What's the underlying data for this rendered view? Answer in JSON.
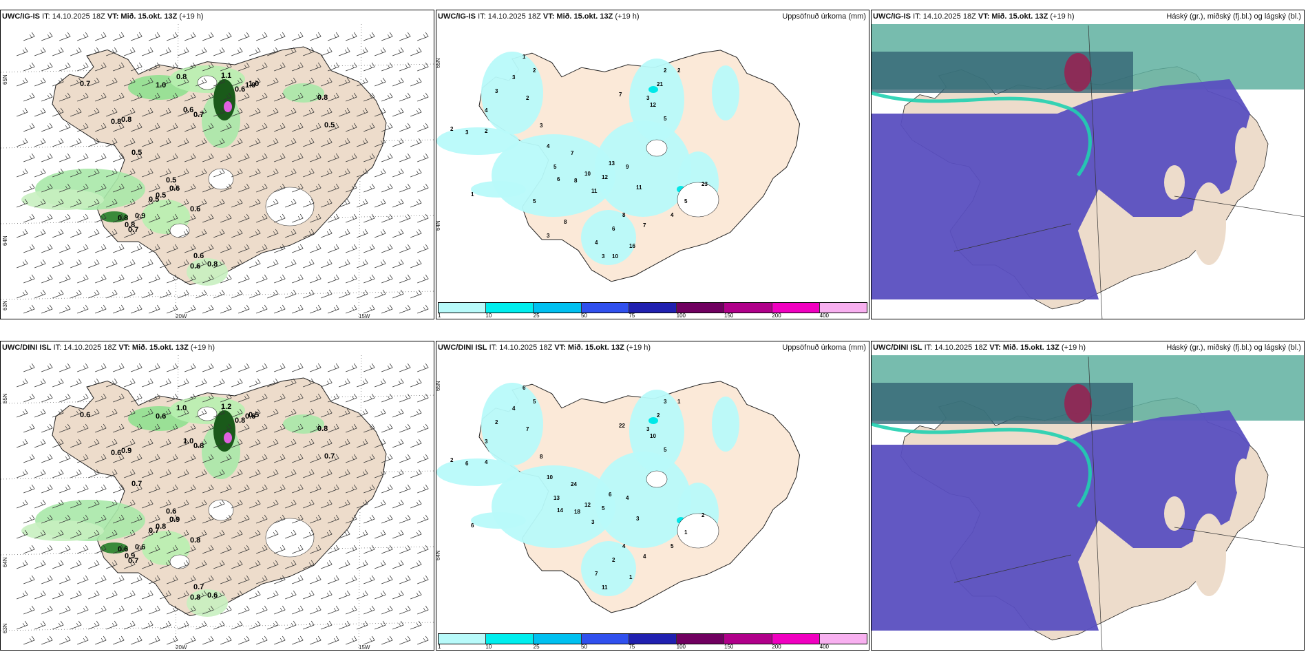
{
  "rows": [
    {
      "model": "UWC/IG-IS",
      "it": "IT: 14.10.2025 18Z",
      "vt": "VT: Mið. 15.okt. 13Z",
      "lead": "(+19 h)",
      "precip_title": "Uppsöfnuð úrkoma (mm)",
      "cloud_title": "Háský (gr.), miðský (fj.bl.) og lágský (bl.)",
      "wind_labels": [
        "0.7",
        "1.0",
        "0.8",
        "1.1",
        "0.6",
        "1.0",
        "0.6",
        "0.7",
        "0.8",
        "0.8",
        "0.5",
        "0.5",
        "0.6",
        "0.5",
        "0.5",
        "0.6",
        "0.8",
        "0.8",
        "0.9",
        "0.7",
        "0.6",
        "0.6",
        "0.8",
        "1.0",
        "0.5",
        "0.8"
      ],
      "precip_labels": [
        "2",
        "3",
        "2",
        "4",
        "3",
        "3",
        "2",
        "1",
        "2",
        "3",
        "4",
        "5",
        "6",
        "7",
        "8",
        "10",
        "11",
        "12",
        "13",
        "9",
        "21",
        "12",
        "5",
        "3",
        "2",
        "7",
        "11",
        "8",
        "6",
        "4",
        "3",
        "1",
        "23",
        "5",
        "4",
        "2",
        "7",
        "16",
        "10",
        "8",
        "3",
        "5"
      ]
    },
    {
      "model": "UWC/DINI ISL",
      "it": "IT: 14.10.2025 18Z",
      "vt": "VT: Mið. 15.okt. 13Z",
      "lead": "(+19 h)",
      "precip_title": "Uppsöfnuð úrkoma (mm)",
      "cloud_title": "Háský (gr.), miðský (fj.bl.) og lágský (bl.)",
      "wind_labels": [
        "0.6",
        "0.6",
        "1.0",
        "1.2",
        "0.8",
        "0.5",
        "1.0",
        "0.8",
        "0.6",
        "0.9",
        "0.7",
        "0.6",
        "0.9",
        "0.8",
        "0.7",
        "0.8",
        "0.6",
        "0.9",
        "0.6",
        "0.7",
        "0.7",
        "0.8",
        "0.6",
        "0.6",
        "0.7",
        "0.8"
      ],
      "precip_labels": [
        "2",
        "6",
        "4",
        "3",
        "2",
        "4",
        "5",
        "6",
        "7",
        "8",
        "10",
        "13",
        "14",
        "24",
        "18",
        "12",
        "3",
        "5",
        "6",
        "4",
        "2",
        "10",
        "5",
        "3",
        "1",
        "22",
        "3",
        "4",
        "2",
        "7",
        "11",
        "6",
        "2",
        "1",
        "5",
        "3",
        "4",
        "1"
      ]
    }
  ],
  "lat_labels": [
    "65N",
    "64N",
    "63N"
  ],
  "lon_labels": [
    "20W",
    "15W"
  ],
  "colorbar": {
    "ticks": [
      "1",
      "10",
      "25",
      "50",
      "75",
      "100",
      "150",
      "200",
      "400"
    ],
    "colors": [
      "#b8fafa",
      "#00eeee",
      "#00c0f0",
      "#3050ee",
      "#2020b0",
      "#700060",
      "#b0008a",
      "#f000c0",
      "#f8b0f0"
    ]
  }
}
